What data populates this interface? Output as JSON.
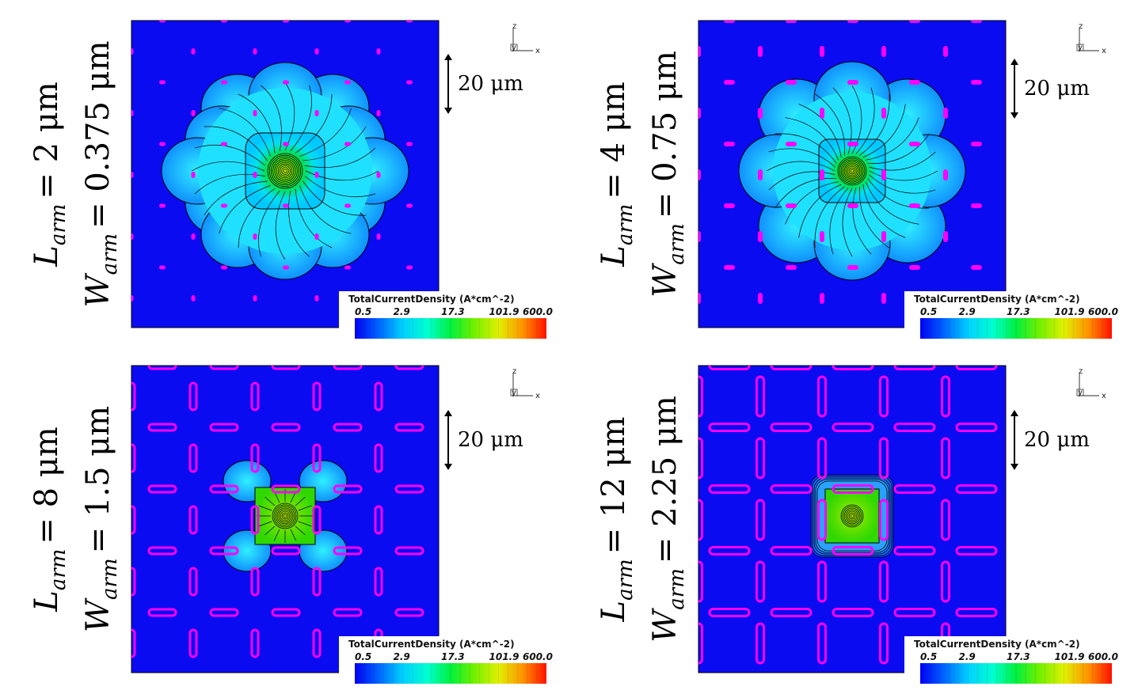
{
  "panels": [
    {
      "id": "a",
      "l_symbol": "L",
      "l_subscript": "arm",
      "l_value": "= 2 μm",
      "w_symbol": "W",
      "w_subscript": "arm",
      "w_value": "= 0.375 μm",
      "arm_length_um": 2,
      "arm_width_um": 0.375
    },
    {
      "id": "b",
      "l_symbol": "L",
      "l_subscript": "arm",
      "l_value": "= 4 μm",
      "w_symbol": "W",
      "w_subscript": "arm",
      "w_value": "= 0.75 μm",
      "arm_length_um": 4,
      "arm_width_um": 0.75
    },
    {
      "id": "c",
      "l_symbol": "L",
      "l_subscript": "arm",
      "l_value": "= 8 μm",
      "w_symbol": "W",
      "w_subscript": "arm",
      "w_value": "= 1.5 μm",
      "arm_length_um": 8,
      "arm_width_um": 1.5
    },
    {
      "id": "d",
      "l_symbol": "L",
      "l_subscript": "arm",
      "l_value": "= 12 μm",
      "w_symbol": "W",
      "w_subscript": "arm",
      "w_value": "= 2.25 μm",
      "arm_length_um": 12,
      "arm_width_um": 2.25
    }
  ],
  "scale_bar": {
    "label": "20 μm",
    "length_um": 20
  },
  "colorbar": {
    "title": "TotalCurrentDensity (A*cm^-2)",
    "ticks": [
      "0.5",
      "2.9",
      "17.3",
      "101.9",
      "600.0"
    ]
  },
  "axes_triad": {
    "vertical": "z",
    "horizontal": "x",
    "center": "y"
  },
  "colors": {
    "background_field": "#0b0bf2",
    "contact": "#ff00ff",
    "contour_line": "#000000",
    "colormap": [
      "#0014ff",
      "#0090ff",
      "#00f0ff",
      "#00ff90",
      "#20f000",
      "#9cf000",
      "#f0f000",
      "#ff9000",
      "#ff1400"
    ]
  }
}
